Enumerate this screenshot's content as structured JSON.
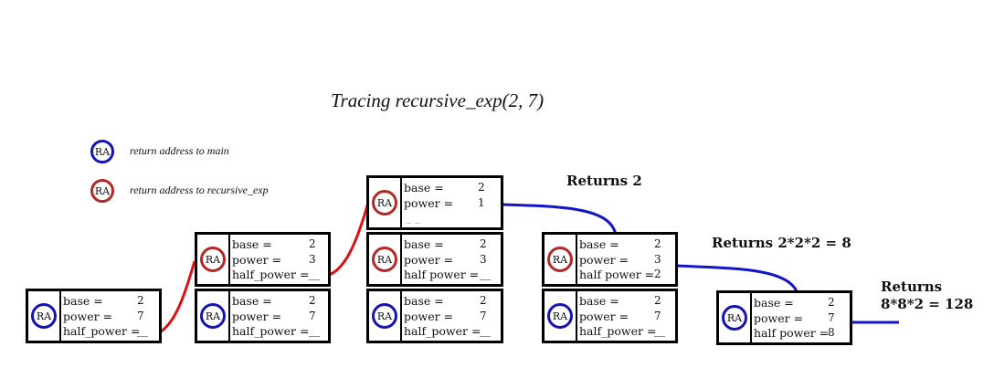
{
  "title": "Tracing recursive_exp(2, 7)",
  "legend": [
    {
      "ra": "RA",
      "text": "return address to main",
      "color": "#1414b4"
    },
    {
      "ra": "RA",
      "text": "return address to recursive_exp",
      "color": "#b42828"
    }
  ],
  "labels": {
    "base": "base =",
    "power": "power =",
    "half_power": "half_power =",
    "half_power_compact": "half power ="
  },
  "frames": {
    "f1": {
      "ra": "RA",
      "base": "2",
      "power": "7",
      "half_power": "__"
    },
    "f2a": {
      "ra": "RA",
      "base": "2",
      "power": "3",
      "half_power": "__"
    },
    "f2b": {
      "ra": "RA",
      "base": "2",
      "power": "7",
      "half_power": "__"
    },
    "f3a": {
      "ra": "RA",
      "base": "2",
      "power": "1",
      "extra": "_ _"
    },
    "f3b": {
      "ra": "RA",
      "base": "2",
      "power": "3",
      "half_power": "__"
    },
    "f3c": {
      "ra": "RA",
      "base": "2",
      "power": "7",
      "half_power": "__"
    },
    "f4a": {
      "ra": "RA",
      "base": "2",
      "power": "3",
      "half_power": "2"
    },
    "f4b": {
      "ra": "RA",
      "base": "2",
      "power": "7",
      "half_power": "__"
    },
    "f5": {
      "ra": "RA",
      "base": "2",
      "power": "7",
      "half_power": "8"
    }
  },
  "returns": {
    "r1": "Returns 2",
    "r2": "Returns 2*2*2 = 8",
    "r3_line1": "Returns",
    "r3_line2": "8*8*2 = 128"
  },
  "colors": {
    "main_ra": "#1414b4",
    "recursive_ra": "#b42828",
    "call_line": "#e01010",
    "return_line": "#1414c8"
  }
}
